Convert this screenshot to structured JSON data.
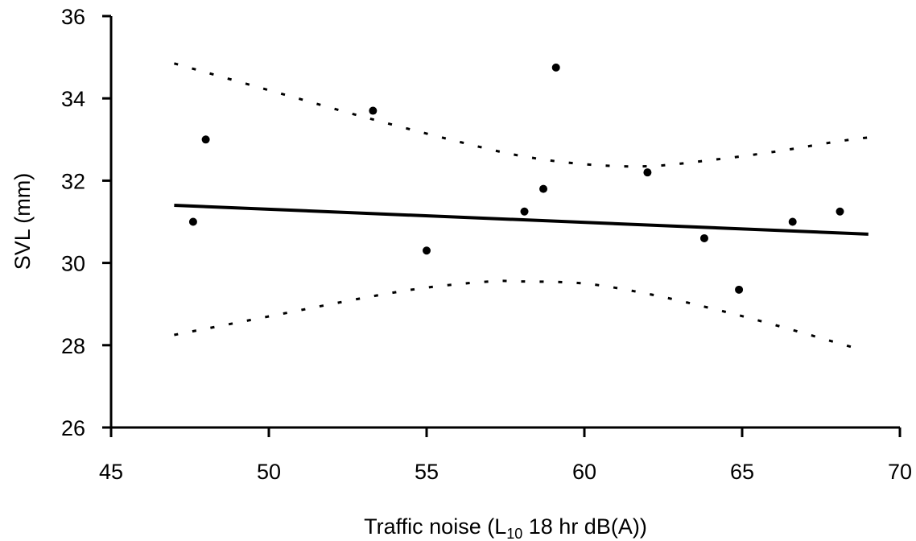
{
  "chart_data": {
    "type": "scatter",
    "x_axis": {
      "label_prefix": "Traffic noise (L",
      "label_subscript": "10",
      "label_suffix": " 18 hr dB(A))",
      "lim": [
        45,
        70
      ],
      "ticks": [
        45,
        50,
        55,
        60,
        65,
        70
      ],
      "tick_labels": [
        "45",
        "50",
        "55",
        "60",
        "65",
        "70"
      ]
    },
    "y_axis": {
      "label": "SVL (mm)",
      "lim": [
        26,
        36
      ],
      "ticks": [
        26,
        28,
        30,
        32,
        34,
        36
      ],
      "tick_labels": [
        "26",
        "28",
        "30",
        "32",
        "34",
        "36"
      ]
    },
    "grid": false,
    "points": [
      {
        "x": 47.6,
        "y": 31.0
      },
      {
        "x": 48.0,
        "y": 33.0
      },
      {
        "x": 53.3,
        "y": 33.7
      },
      {
        "x": 55.0,
        "y": 30.3
      },
      {
        "x": 58.1,
        "y": 31.25
      },
      {
        "x": 58.7,
        "y": 31.8
      },
      {
        "x": 59.1,
        "y": 34.75
      },
      {
        "x": 62.0,
        "y": 32.2
      },
      {
        "x": 63.8,
        "y": 30.6
      },
      {
        "x": 64.9,
        "y": 29.35
      },
      {
        "x": 66.6,
        "y": 31.0
      },
      {
        "x": 68.1,
        "y": 31.25
      }
    ],
    "trend_line": {
      "style": "solid",
      "x": [
        47,
        69
      ],
      "y": [
        31.4,
        30.7
      ]
    },
    "confidence_upper": {
      "style": "dotted",
      "x": [
        47,
        50,
        53,
        56,
        58,
        60,
        62,
        64,
        66,
        68,
        69
      ],
      "y": [
        34.85,
        34.2,
        33.55,
        32.95,
        32.6,
        32.4,
        32.35,
        32.5,
        32.7,
        32.95,
        33.05
      ]
    },
    "confidence_lower": {
      "style": "dotted",
      "x": [
        47,
        50,
        53,
        55,
        57,
        58,
        60,
        62,
        64,
        66,
        68.5
      ],
      "y": [
        28.25,
        28.7,
        29.15,
        29.4,
        29.55,
        29.55,
        29.5,
        29.25,
        28.9,
        28.5,
        27.95
      ]
    }
  }
}
